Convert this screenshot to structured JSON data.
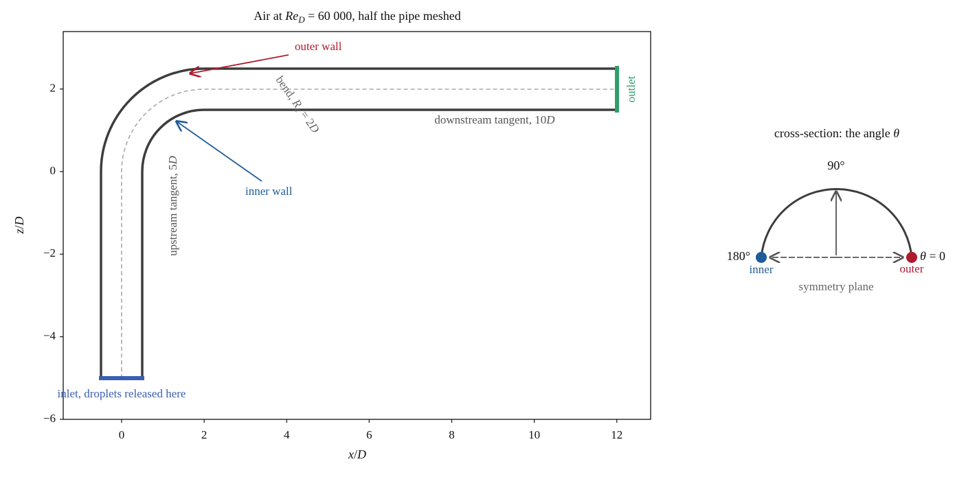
{
  "title": [
    "Air at ",
    "Re",
    "D",
    " = 60 000, half the pipe meshed"
  ],
  "axes": {
    "xlabel": [
      "x",
      "/",
      "D"
    ],
    "ylabel": [
      "z",
      "/",
      "D"
    ],
    "xlim": [
      -1.415,
      12.82
    ],
    "ylim": [
      -6,
      3.39
    ],
    "xticks": [
      0,
      2,
      4,
      6,
      8,
      10,
      12
    ],
    "yticks": [
      {
        "value": -6,
        "label": "−6"
      },
      {
        "value": -4,
        "label": "−4"
      },
      {
        "value": -2,
        "label": "−2"
      },
      0,
      2
    ]
  },
  "annotations": {
    "outer_wall": "outer wall",
    "inner_wall": "inner wall",
    "bend": [
      "bend, ",
      "R",
      "c",
      " = 2",
      "D"
    ],
    "upstream": [
      "upstream tangent, 5",
      "D"
    ],
    "downstream": [
      "downstream tangent, 10",
      "D"
    ],
    "outlet": "outlet",
    "inlet": "inlet, droplets released here"
  },
  "cross_section": {
    "title": [
      "cross-section: the angle ",
      "θ"
    ],
    "top": "90°",
    "left": "180°",
    "right": [
      "θ",
      " = 0"
    ],
    "inner": "inner",
    "outer": "outer",
    "plane": "symmetry plane"
  }
}
